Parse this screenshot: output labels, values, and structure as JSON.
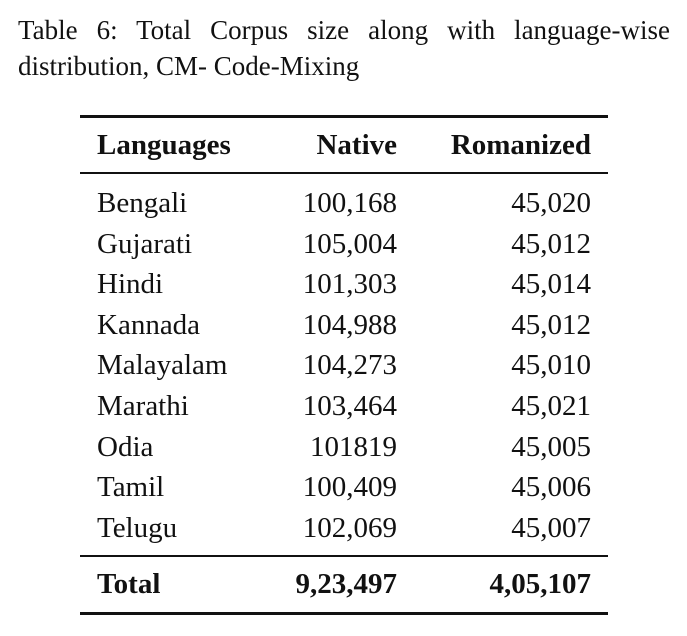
{
  "caption": [
    "Table 6: Total Corpus size along with language-wise",
    "distribution, CM- Code-Mixing"
  ],
  "table": {
    "header": [
      "Languages",
      "Native",
      "Romanized"
    ],
    "rows": [
      [
        "Bengali",
        "100,168",
        "45,020"
      ],
      [
        "Gujarati",
        "105,004",
        "45,012"
      ],
      [
        "Hindi",
        "101,303",
        "45,014"
      ],
      [
        "Kannada",
        "104,988",
        "45,012"
      ],
      [
        "Malayalam",
        "104,273",
        "45,010"
      ],
      [
        "Marathi",
        "103,464",
        "45,021"
      ],
      [
        "Odia",
        "101819",
        "45,005"
      ],
      [
        "Tamil",
        "100,409",
        "45,006"
      ],
      [
        "Telugu",
        "102,069",
        "45,007"
      ]
    ],
    "total": [
      "Total",
      "9,23,497",
      "4,05,107"
    ]
  }
}
